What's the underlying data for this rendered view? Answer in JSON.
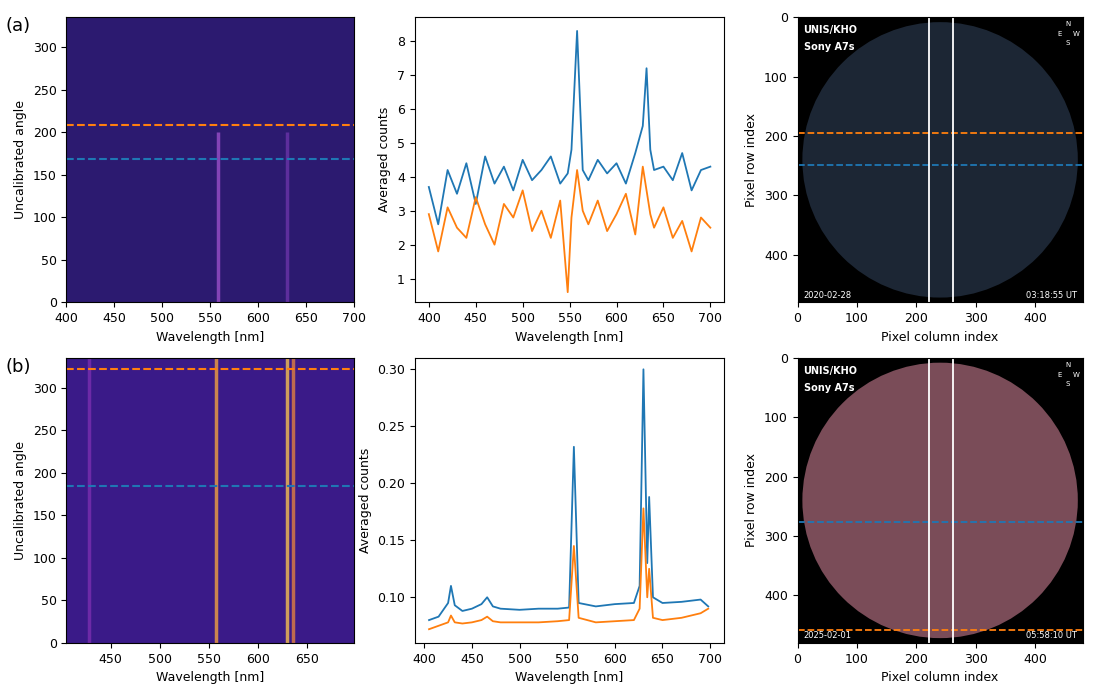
{
  "chart_data": [
    {
      "type": "spectrogram",
      "panel_label": "(a)",
      "xlabel": "Wavelength [nm]",
      "ylabel": "Uncalibrated angle",
      "xlim": [
        400,
        700
      ],
      "ylim": [
        0,
        335
      ],
      "xticks": [
        400,
        450,
        500,
        550,
        600,
        650,
        700
      ],
      "yticks": [
        0,
        50,
        100,
        150,
        200,
        250,
        300
      ],
      "color": "#2c1a70",
      "emission_lines": [
        {
          "wavelength": 557.7,
          "angle_range": [
            0,
            200
          ],
          "color": "#9a4fc8"
        },
        {
          "wavelength": 630.0,
          "angle_range": [
            0,
            200
          ],
          "color": "#6a34a8"
        }
      ],
      "hlines": [
        {
          "y": 208,
          "color": "#ff7f0e",
          "line_style": "dashed"
        },
        {
          "y": 168,
          "color": "#1f77b4",
          "line_style": "dashed"
        }
      ]
    },
    {
      "type": "line",
      "xlabel": "Wavelength [nm]",
      "ylabel": "Averaged counts",
      "xlim": [
        385,
        715
      ],
      "ylim": [
        0.3,
        8.7
      ],
      "xticks": [
        400,
        450,
        500,
        550,
        600,
        650,
        700
      ],
      "yticks": [
        1,
        2,
        3,
        4,
        5,
        6,
        7,
        8
      ],
      "x": [
        400,
        410,
        420,
        430,
        440,
        450,
        460,
        470,
        480,
        490,
        500,
        510,
        520,
        530,
        540,
        548,
        552,
        558,
        564,
        570,
        580,
        590,
        600,
        610,
        620,
        628,
        632,
        636,
        640,
        650,
        660,
        670,
        680,
        690,
        700
      ],
      "series": [
        {
          "color": "#1f77b4",
          "values": [
            3.7,
            2.6,
            4.2,
            3.5,
            4.4,
            3.2,
            4.6,
            3.8,
            4.3,
            3.6,
            4.5,
            3.9,
            4.2,
            4.6,
            3.8,
            4.1,
            4.8,
            8.3,
            4.2,
            3.9,
            4.5,
            4.1,
            4.4,
            3.8,
            4.7,
            5.5,
            7.2,
            4.8,
            4.2,
            4.3,
            3.9,
            4.7,
            3.6,
            4.2,
            4.3
          ]
        },
        {
          "color": "#ff7f0e",
          "values": [
            2.9,
            1.8,
            3.1,
            2.5,
            2.2,
            3.4,
            2.6,
            2.0,
            3.2,
            2.8,
            3.6,
            2.4,
            3.0,
            2.2,
            3.3,
            0.6,
            2.8,
            4.2,
            3.0,
            2.6,
            3.3,
            2.4,
            2.9,
            3.5,
            2.3,
            4.3,
            3.6,
            2.9,
            2.5,
            3.1,
            2.2,
            2.7,
            1.8,
            2.8,
            2.5
          ]
        }
      ]
    },
    {
      "type": "image",
      "xlabel": "Pixel column index",
      "ylabel": "Pixel row index",
      "xlim": [
        0,
        480
      ],
      "ylim": [
        480,
        0
      ],
      "xticks": [
        0,
        100,
        200,
        300,
        400
      ],
      "yticks": [
        0,
        100,
        200,
        300,
        400
      ],
      "color": "#1c2634",
      "annotations": [
        "UNIS/KHO",
        "Sony A7s",
        "2020-02-28",
        "03:18:55 UT"
      ],
      "compass": [
        "N",
        "E",
        "W",
        "S"
      ],
      "hlines": [
        {
          "y": 195,
          "color": "#ff7f0e",
          "line_style": "dashed"
        },
        {
          "y": 248,
          "color": "#1f77b4",
          "line_style": "dashed"
        }
      ],
      "vlines": [
        {
          "x": 222,
          "color": "#ffffff"
        },
        {
          "x": 262,
          "color": "#ffffff"
        }
      ]
    },
    {
      "type": "spectrogram",
      "panel_label": "(b)",
      "xlabel": "Wavelength [nm]",
      "ylabel": "Uncalibrated angle",
      "xlim": [
        405,
        698
      ],
      "ylim": [
        0,
        335
      ],
      "xticks": [
        450,
        500,
        550,
        600,
        650
      ],
      "yticks": [
        0,
        50,
        100,
        150,
        200,
        250,
        300
      ],
      "color": "#3a1a88",
      "emission_lines": [
        {
          "wavelength": 427.8,
          "angle_range": [
            0,
            335
          ],
          "color": "#7a2fb0"
        },
        {
          "wavelength": 557.7,
          "angle_range": [
            0,
            335
          ],
          "color": "#f0a040"
        },
        {
          "wavelength": 630.0,
          "angle_range": [
            0,
            335
          ],
          "color": "#f6c050"
        },
        {
          "wavelength": 636.4,
          "angle_range": [
            0,
            335
          ],
          "color": "#e08040"
        }
      ],
      "hlines": [
        {
          "y": 322,
          "color": "#ff7f0e",
          "line_style": "dashed"
        },
        {
          "y": 185,
          "color": "#1f77b4",
          "line_style": "dashed"
        }
      ]
    },
    {
      "type": "line",
      "xlabel": "Wavelength [nm]",
      "ylabel": "Averaged counts",
      "xlim": [
        390,
        715
      ],
      "ylim": [
        0.06,
        0.31
      ],
      "xticks": [
        400,
        450,
        500,
        550,
        600,
        650,
        700
      ],
      "yticks": [
        {
          "value": 0.1,
          "label": "0.10"
        },
        0.15,
        {
          "value": 0.2,
          "label": "0.20"
        },
        0.25,
        {
          "value": 0.3,
          "label": "0.30"
        }
      ],
      "x": [
        405,
        415,
        425,
        428,
        432,
        440,
        450,
        460,
        466,
        472,
        480,
        500,
        520,
        540,
        552,
        557,
        562,
        580,
        600,
        620,
        626,
        630,
        634,
        636,
        640,
        650,
        670,
        690,
        698
      ],
      "series": [
        {
          "color": "#1f77b4",
          "values": [
            0.08,
            0.083,
            0.095,
            0.11,
            0.093,
            0.088,
            0.09,
            0.094,
            0.1,
            0.092,
            0.09,
            0.089,
            0.09,
            0.09,
            0.091,
            0.232,
            0.095,
            0.092,
            0.094,
            0.095,
            0.11,
            0.3,
            0.13,
            0.188,
            0.1,
            0.095,
            0.096,
            0.098,
            0.092
          ]
        },
        {
          "color": "#ff7f0e",
          "values": [
            0.072,
            0.075,
            0.078,
            0.084,
            0.078,
            0.077,
            0.078,
            0.08,
            0.083,
            0.079,
            0.078,
            0.078,
            0.078,
            0.079,
            0.08,
            0.145,
            0.082,
            0.078,
            0.079,
            0.08,
            0.09,
            0.178,
            0.1,
            0.125,
            0.082,
            0.08,
            0.082,
            0.086,
            0.09
          ]
        }
      ]
    },
    {
      "type": "image",
      "xlabel": "Pixel column index",
      "ylabel": "Pixel row index",
      "xlim": [
        0,
        480
      ],
      "ylim": [
        480,
        0
      ],
      "xticks": [
        0,
        100,
        200,
        300,
        400
      ],
      "yticks": [
        0,
        100,
        200,
        300,
        400
      ],
      "color": "#7a4c58",
      "annotations": [
        "UNIS/KHO",
        "Sony A7s",
        "2025-02-01",
        "05:58:10 UT"
      ],
      "compass": [
        "N",
        "E",
        "W",
        "S"
      ],
      "hlines": [
        {
          "y": 277,
          "color": "#1f77b4",
          "line_style": "dashed"
        },
        {
          "y": 458,
          "color": "#ff7f0e",
          "line_style": "dashed"
        }
      ],
      "vlines": [
        {
          "x": 222,
          "color": "#ffffff"
        },
        {
          "x": 262,
          "color": "#ffffff"
        }
      ]
    }
  ]
}
